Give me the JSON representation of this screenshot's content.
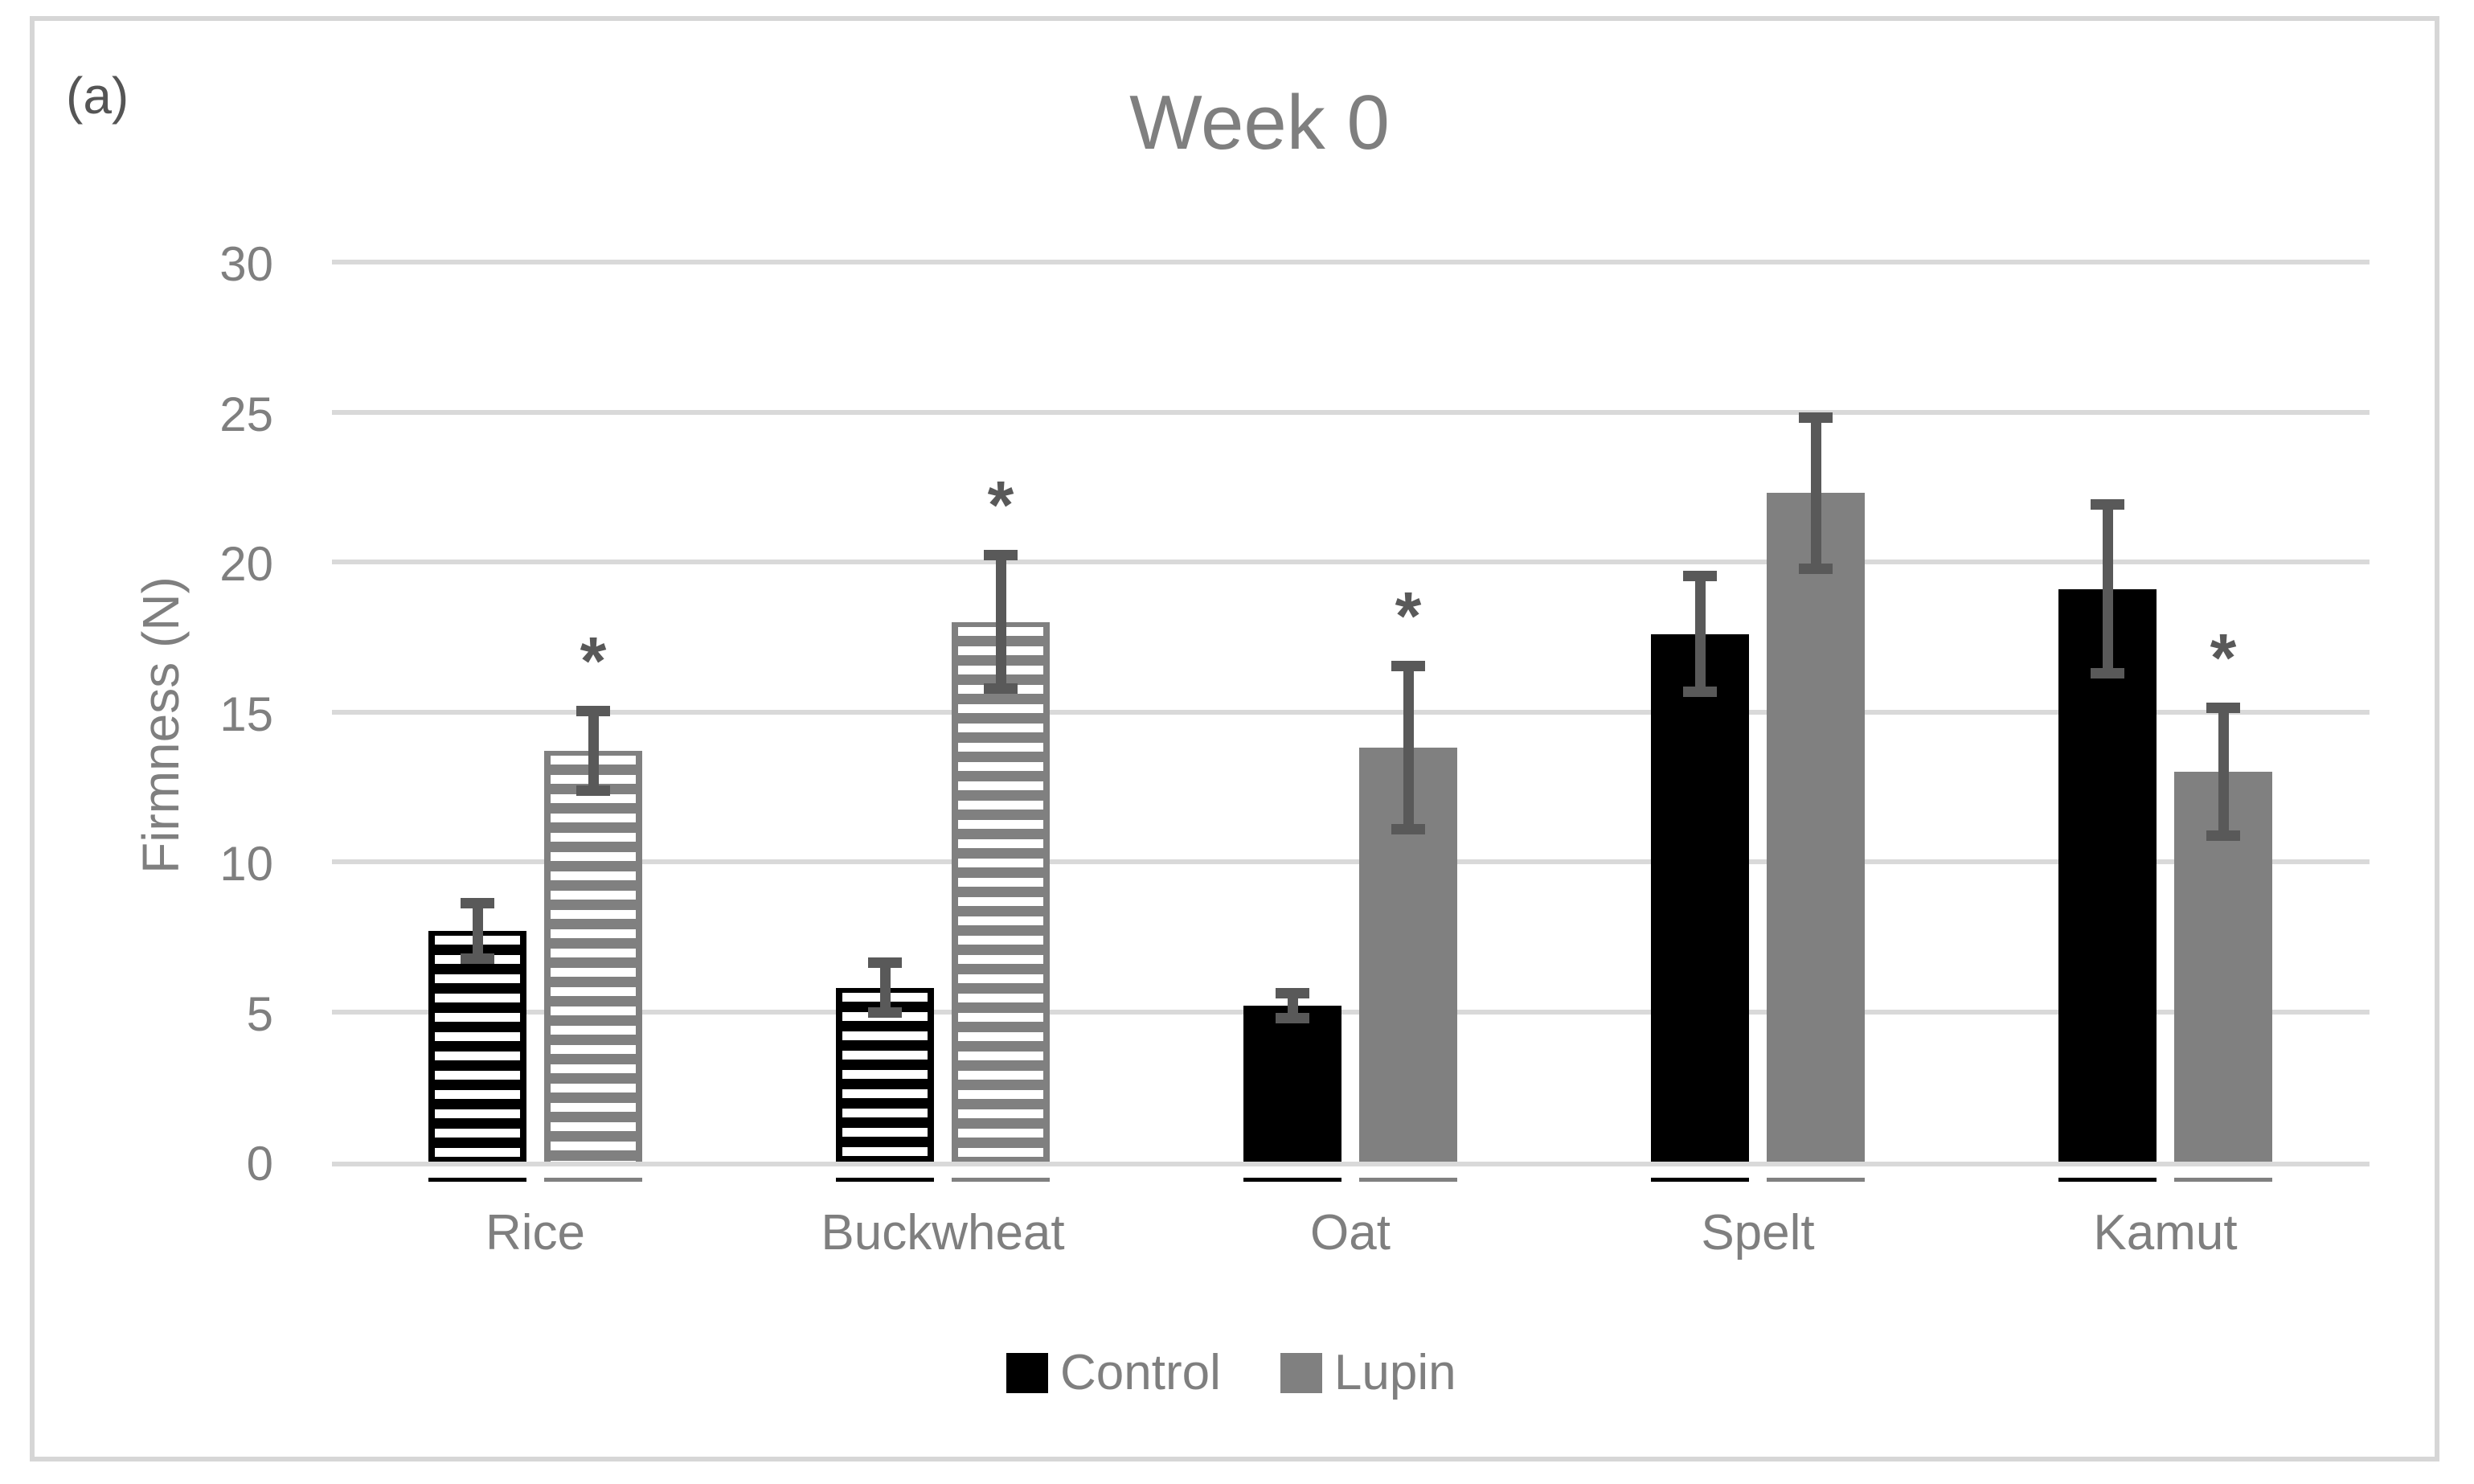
{
  "panel_label": "(a)",
  "title": "Week 0",
  "y_axis_label": "Firmness (N)",
  "colors": {
    "control": "#000000",
    "lupin": "#808080",
    "error_bar": "#595959",
    "gridline": "#d9d9d9",
    "text": "#7f7f7f",
    "frame_border": "#d6d6d6"
  },
  "chart_data": {
    "type": "bar",
    "title": "Week 0",
    "xlabel": "",
    "ylabel": "Firmness (N)",
    "ylim": [
      0,
      30
    ],
    "yticks": [
      0,
      5,
      10,
      15,
      20,
      25,
      30
    ],
    "grid": true,
    "legend_position": "bottom",
    "categories": [
      "Rice",
      "Buckwheat",
      "Oat",
      "Spelt",
      "Kamut"
    ],
    "series": [
      {
        "name": "Control",
        "color": "#000000",
        "values": [
          7.7,
          5.8,
          5.2,
          17.6,
          19.1
        ],
        "errors": [
          1.1,
          1.0,
          0.6,
          2.1,
          3.0
        ],
        "significant": [
          false,
          false,
          false,
          false,
          false
        ]
      },
      {
        "name": "Lupin",
        "color": "#808080",
        "values": [
          13.7,
          18.0,
          13.8,
          22.3,
          13.0
        ],
        "errors": [
          1.5,
          2.4,
          2.9,
          2.7,
          2.3
        ],
        "significant": [
          true,
          true,
          true,
          false,
          true
        ]
      }
    ],
    "hatched_categories": [
      true,
      true,
      false,
      false,
      false
    ],
    "hatch_style": "horizontal-stripes",
    "significance_marker": "*",
    "error_bar_color": "#595959"
  }
}
